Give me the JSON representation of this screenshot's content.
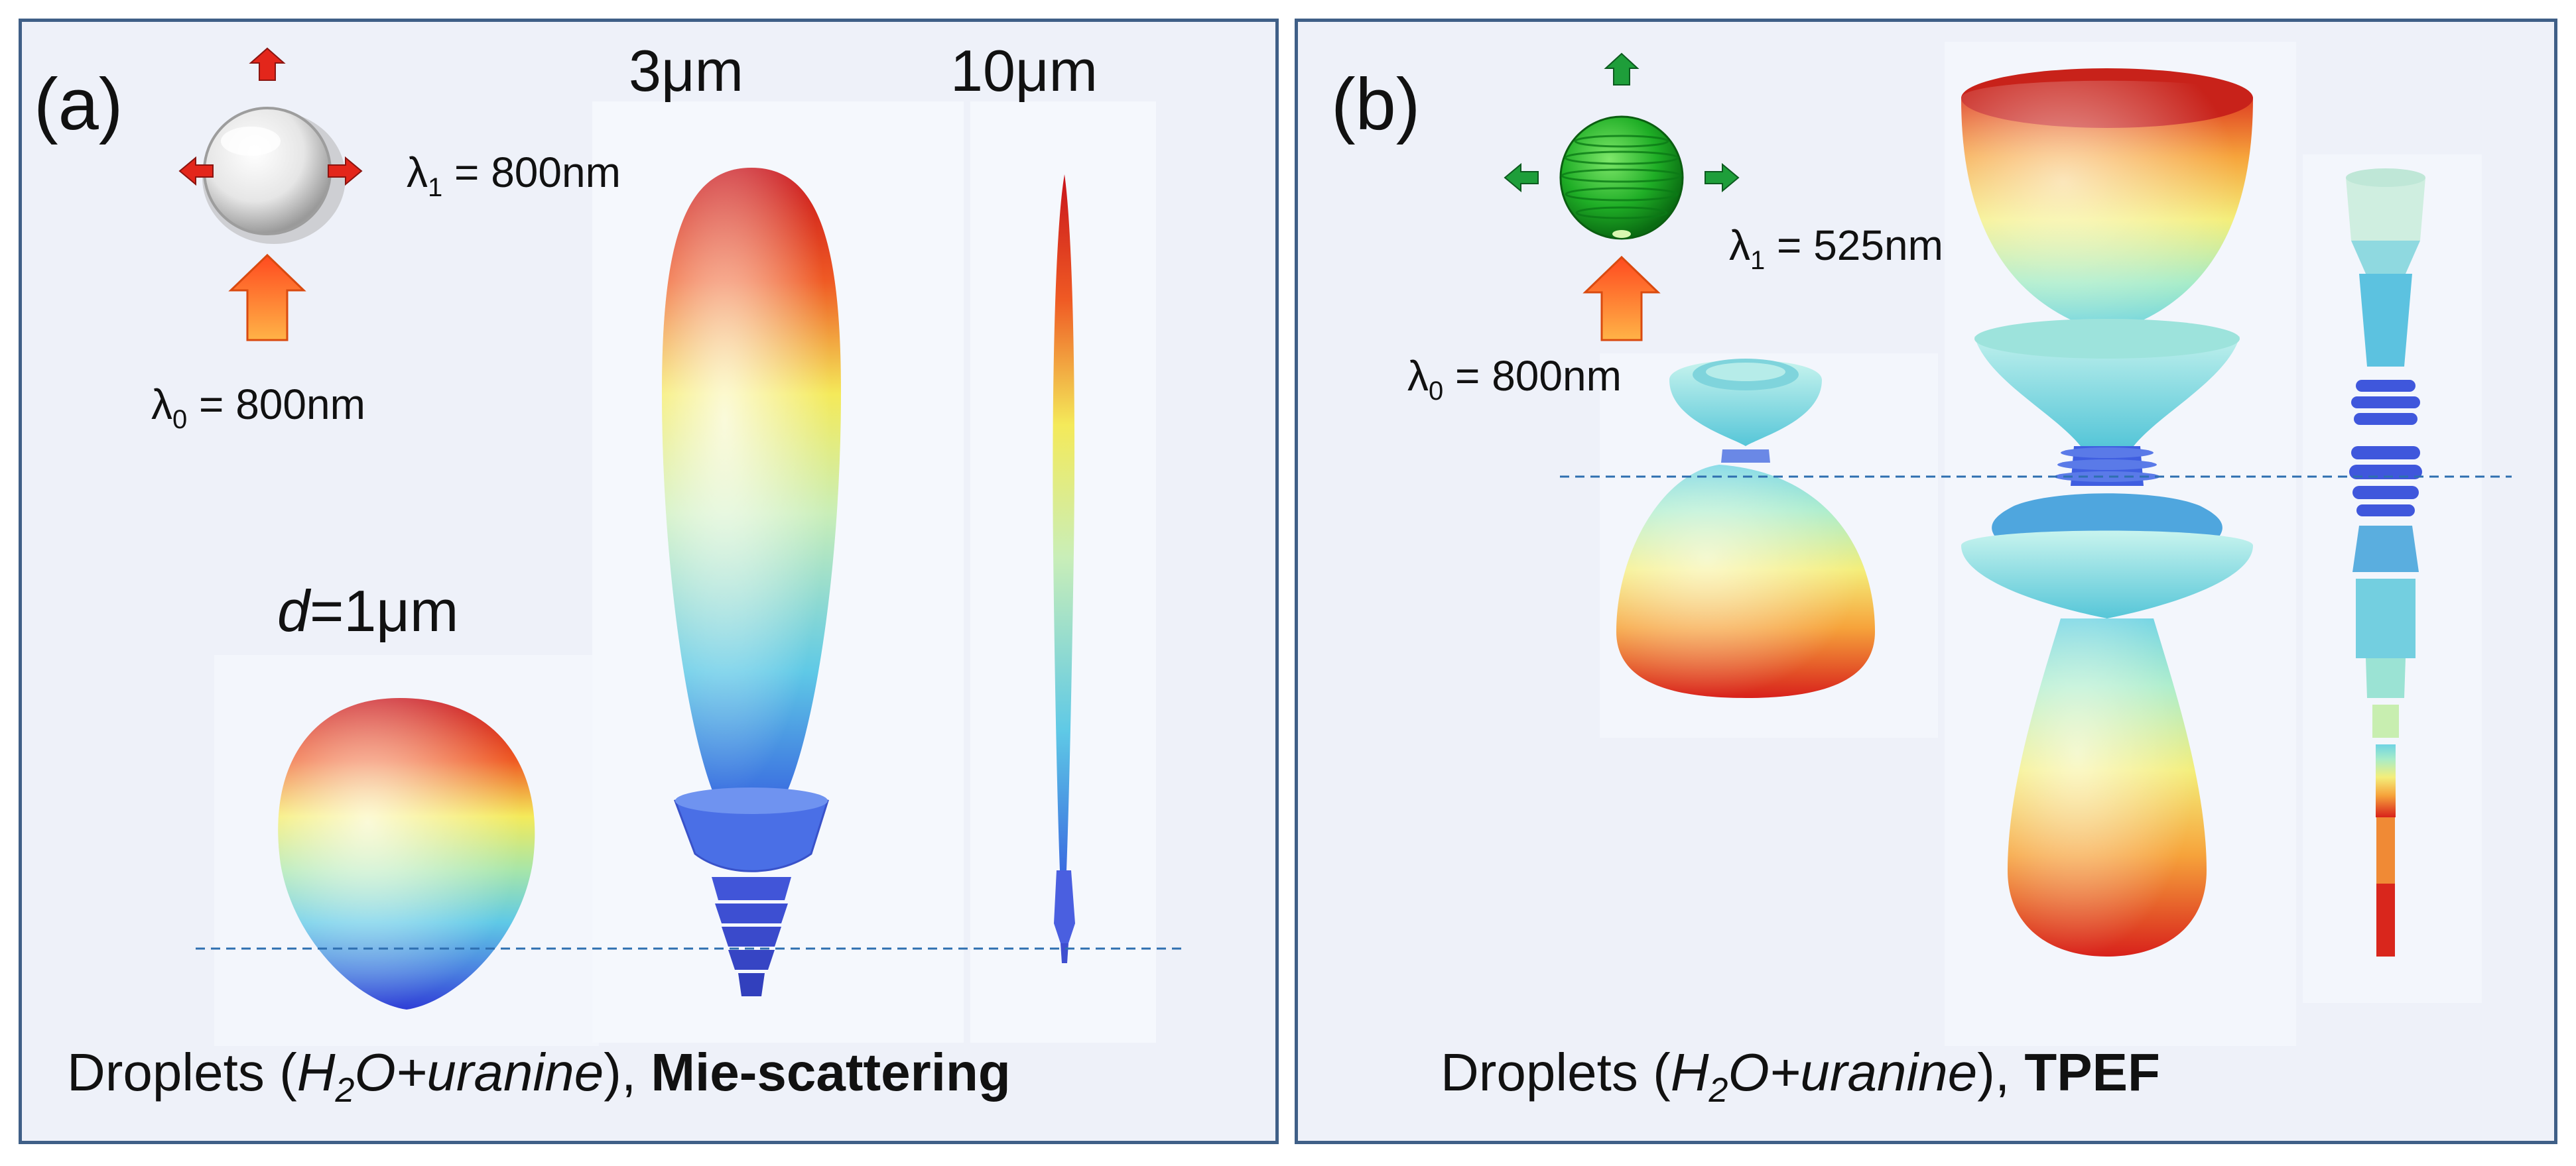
{
  "panel_a": {
    "label": "(a)",
    "lambda0": {
      "symbol": "λ",
      "sub": "0",
      "value": " = 800nm"
    },
    "lambda1": {
      "symbol": "λ",
      "sub": "1",
      "value": " = 800nm"
    },
    "size_1": {
      "prefix": "d",
      "value": "=1μm"
    },
    "size_3": "3μm",
    "size_10": "10μm",
    "caption": {
      "text1": "Droplets (",
      "sub_before": "H",
      "sub": "2",
      "sub_after": "O+uranine",
      "text2": "), ",
      "bold": "Mie-scattering"
    }
  },
  "panel_b": {
    "label": "(b)",
    "lambda0": {
      "symbol": "λ",
      "sub": "0",
      "value": " = 800nm"
    },
    "lambda1": {
      "symbol": "λ",
      "sub": "1",
      "value": " = 525nm"
    },
    "caption": {
      "text1": "Droplets (",
      "sub_before": "H",
      "sub": "2",
      "sub_after": "O+uranine",
      "text2": "), ",
      "bold": "TPEF"
    }
  },
  "colors": {
    "frame": "#3f5f87",
    "panel_bg": "#eef1f9",
    "arrow_red": "#e3261b",
    "arrow_orange": "#ff7a1f",
    "arrow_green": "#1e9e3a",
    "dashed_line": "#2e6fb0"
  }
}
